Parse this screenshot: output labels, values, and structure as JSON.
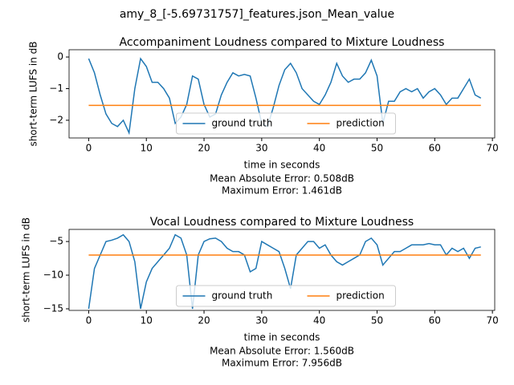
{
  "title": "amy_8_[-5.69731757]_features.json_Mean_value",
  "chart_data": [
    {
      "type": "line",
      "title": "Accompaniment Loudness compared to Mixture Loudness",
      "xlabel": "time in seconds",
      "ylabel": "short-term LUFS in dB",
      "annotations": [
        "Mean Absolute Error: 0.508dB",
        "Maximum Error: 1.461dB"
      ],
      "x": [
        0,
        1,
        2,
        3,
        4,
        5,
        6,
        7,
        8,
        9,
        10,
        11,
        12,
        13,
        14,
        15,
        16,
        17,
        18,
        19,
        20,
        21,
        22,
        23,
        24,
        25,
        26,
        27,
        28,
        29,
        30,
        31,
        32,
        33,
        34,
        35,
        36,
        37,
        38,
        39,
        40,
        41,
        42,
        43,
        44,
        45,
        46,
        47,
        48,
        49,
        50,
        51,
        52,
        53,
        54,
        55,
        56,
        57,
        58,
        59,
        60,
        61,
        62,
        63,
        64,
        65,
        66,
        67,
        68
      ],
      "series": [
        {
          "name": "ground truth",
          "color": "#1f77b4",
          "values": [
            -0.05,
            -0.5,
            -1.2,
            -1.8,
            -2.1,
            -2.2,
            -2.0,
            -2.4,
            -1.0,
            -0.05,
            -0.3,
            -0.8,
            -0.8,
            -1.0,
            -1.3,
            -2.1,
            -1.9,
            -1.5,
            -0.6,
            -0.7,
            -1.5,
            -1.9,
            -1.8,
            -1.2,
            -0.8,
            -0.5,
            -0.6,
            -0.55,
            -0.6,
            -1.3,
            -2.1,
            -2.2,
            -1.6,
            -0.9,
            -0.4,
            -0.2,
            -0.5,
            -1.0,
            -1.2,
            -1.4,
            -1.5,
            -1.2,
            -0.8,
            -0.2,
            -0.6,
            -0.8,
            -0.7,
            -0.7,
            -0.5,
            -0.1,
            -0.6,
            -2.1,
            -1.4,
            -1.4,
            -1.1,
            -1.0,
            -1.1,
            -1.0,
            -1.3,
            -1.1,
            -1.0,
            -1.2,
            -1.5,
            -1.3,
            -1.3,
            -1.0,
            -0.7,
            -1.2,
            -1.3
          ]
        },
        {
          "name": "prediction",
          "color": "#ff7f0e",
          "values": [
            -1.53,
            -1.53,
            -1.53,
            -1.53,
            -1.53,
            -1.53,
            -1.53,
            -1.53,
            -1.53,
            -1.53,
            -1.53,
            -1.53,
            -1.53,
            -1.53,
            -1.53,
            -1.53,
            -1.53,
            -1.53,
            -1.53,
            -1.53,
            -1.53,
            -1.53,
            -1.53,
            -1.53,
            -1.53,
            -1.53,
            -1.53,
            -1.53,
            -1.53,
            -1.53,
            -1.53,
            -1.53,
            -1.53,
            -1.53,
            -1.53,
            -1.53,
            -1.53,
            -1.53,
            -1.53,
            -1.53,
            -1.53,
            -1.53,
            -1.53,
            -1.53,
            -1.53,
            -1.53,
            -1.53,
            -1.53,
            -1.53,
            -1.53,
            -1.53,
            -1.53,
            -1.53,
            -1.53,
            -1.53,
            -1.53,
            -1.53,
            -1.53,
            -1.53,
            -1.53,
            -1.53,
            -1.53,
            -1.53,
            -1.53,
            -1.53,
            -1.53,
            -1.53,
            -1.53,
            -1.53
          ]
        }
      ],
      "xlim": [
        -3.4,
        70.4
      ],
      "ylim": [
        -2.56,
        0.23
      ],
      "xticks": [
        0,
        10,
        20,
        30,
        40,
        50,
        60,
        70
      ],
      "yticks": [
        {
          "value": -2,
          "label": "−2"
        },
        {
          "value": -1,
          "label": "−1"
        },
        0
      ],
      "legend": "lower center"
    },
    {
      "type": "line",
      "title": "Vocal Loudness compared to Mixture Loudness",
      "xlabel": "time in seconds",
      "ylabel": "short-term LUFS in dB",
      "annotations": [
        "Mean Absolute Error: 1.560dB",
        "Maximum Error: 7.956dB"
      ],
      "x": [
        0,
        1,
        2,
        3,
        4,
        5,
        6,
        7,
        8,
        9,
        10,
        11,
        12,
        13,
        14,
        15,
        16,
        17,
        18,
        19,
        20,
        21,
        22,
        23,
        24,
        25,
        26,
        27,
        28,
        29,
        30,
        31,
        32,
        33,
        34,
        35,
        36,
        37,
        38,
        39,
        40,
        41,
        42,
        43,
        44,
        45,
        46,
        47,
        48,
        49,
        50,
        51,
        52,
        53,
        54,
        55,
        56,
        57,
        58,
        59,
        60,
        61,
        62,
        63,
        64,
        65,
        66,
        67,
        68
      ],
      "series": [
        {
          "name": "ground truth",
          "color": "#1f77b4",
          "values": [
            -15,
            -9,
            -7,
            -5,
            -4.8,
            -4.5,
            -4,
            -5,
            -8,
            -15,
            -11,
            -9,
            -8,
            -7,
            -6,
            -4,
            -4.5,
            -7,
            -15,
            -7,
            -5,
            -4.6,
            -4.5,
            -5,
            -6,
            -6.5,
            -6.5,
            -7,
            -9.5,
            -9,
            -5,
            -5.5,
            -6,
            -6.5,
            -9,
            -12,
            -7,
            -6,
            -5,
            -5,
            -6,
            -5.5,
            -7,
            -8,
            -8.5,
            -8,
            -7.5,
            -7,
            -5,
            -4.5,
            -5.5,
            -8.5,
            -7.5,
            -6.5,
            -6.5,
            -6,
            -5.5,
            -5.5,
            -5.5,
            -5.3,
            -5.5,
            -5.5,
            -7,
            -6,
            -6.5,
            -6,
            -7.5,
            -6,
            -5.8
          ]
        },
        {
          "name": "prediction",
          "color": "#ff7f0e",
          "values": [
            -7.02,
            -7.02,
            -7.02,
            -7.02,
            -7.02,
            -7.02,
            -7.02,
            -7.02,
            -7.02,
            -7.02,
            -7.02,
            -7.02,
            -7.02,
            -7.02,
            -7.02,
            -7.02,
            -7.02,
            -7.02,
            -7.02,
            -7.02,
            -7.02,
            -7.02,
            -7.02,
            -7.02,
            -7.02,
            -7.02,
            -7.02,
            -7.02,
            -7.02,
            -7.02,
            -7.02,
            -7.02,
            -7.02,
            -7.02,
            -7.02,
            -7.02,
            -7.02,
            -7.02,
            -7.02,
            -7.02,
            -7.02,
            -7.02,
            -7.02,
            -7.02,
            -7.02,
            -7.02,
            -7.02,
            -7.02,
            -7.02,
            -7.02,
            -7.02,
            -7.02,
            -7.02,
            -7.02,
            -7.02,
            -7.02,
            -7.02,
            -7.02,
            -7.02,
            -7.02,
            -7.02,
            -7.02,
            -7.02,
            -7.02,
            -7.02,
            -7.02,
            -7.02,
            -7.02,
            -7.02
          ]
        }
      ],
      "xlim": [
        -3.4,
        70.4
      ],
      "ylim": [
        -15.24,
        -3.2
      ],
      "xticks": [
        0,
        10,
        20,
        30,
        40,
        50,
        60,
        70
      ],
      "yticks": [
        {
          "value": -15,
          "label": "−15"
        },
        {
          "value": -10,
          "label": "−10"
        },
        {
          "value": -5,
          "label": "−5"
        }
      ],
      "legend": "lower center"
    }
  ]
}
